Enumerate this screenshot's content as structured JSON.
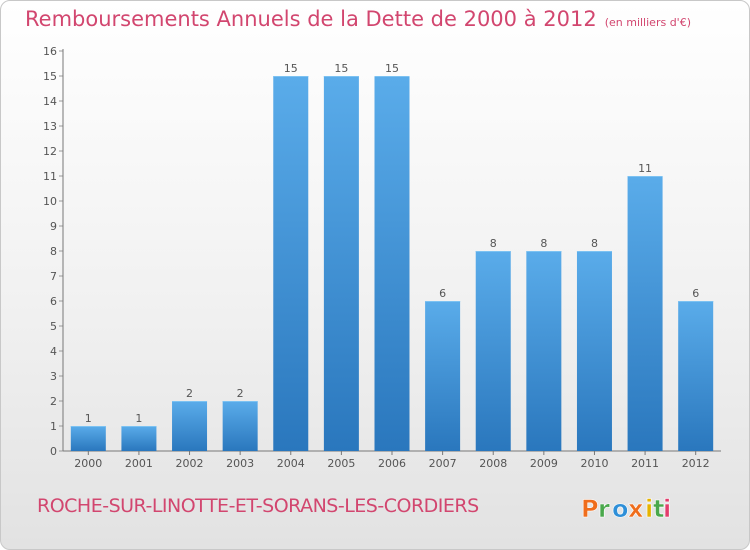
{
  "title": "Remboursements Annuels de la Dette de 2000 à 2012",
  "subtitle": "(en milliers d'€)",
  "commune": "ROCHE-SUR-LINOTTE-ET-SORANS-LES-CORDIERS",
  "logo_text": "Proxiti",
  "colors": {
    "title": "#d2466f",
    "bar_top": "#5aacea",
    "bar_bottom": "#2a77bd",
    "axis_text": "#555555",
    "gridline": "#9a9a9a",
    "logo_letters": [
      "#ef6d1c",
      "#4aa84c",
      "#2e8fd8",
      "#ef6d1c",
      "#e5b300",
      "#4aa84c",
      "#e23d6c"
    ]
  },
  "chart_data": {
    "type": "bar",
    "title": "Remboursements Annuels de la Dette de 2000 à 2012",
    "subtitle": "(en milliers d'€)",
    "categories": [
      "2000",
      "2001",
      "2002",
      "2003",
      "2004",
      "2005",
      "2006",
      "2007",
      "2008",
      "2009",
      "2010",
      "2011",
      "2012"
    ],
    "values": [
      1,
      1,
      2,
      2,
      15,
      15,
      15,
      6,
      8,
      8,
      8,
      11,
      6
    ],
    "ylim": [
      0,
      16
    ],
    "yticks": [
      0,
      1,
      2,
      3,
      4,
      5,
      6,
      7,
      8,
      9,
      10,
      11,
      12,
      13,
      14,
      15,
      16
    ],
    "grid": false,
    "data_labels": true
  }
}
